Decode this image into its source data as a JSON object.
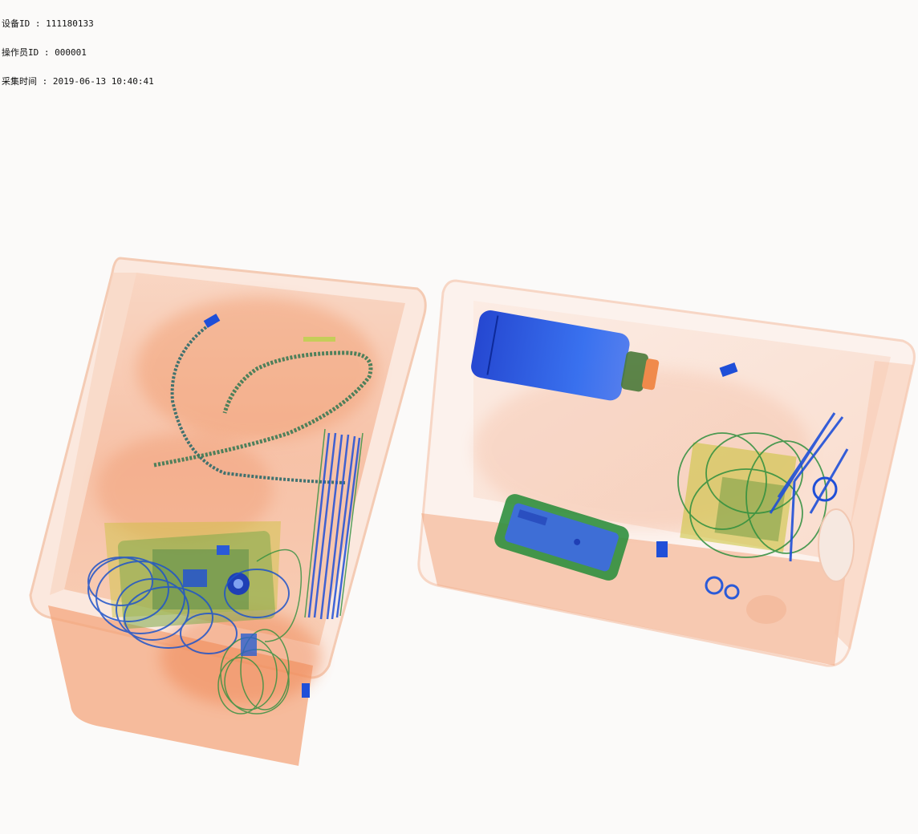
{
  "header": {
    "device_id": "设备ID : 111180133",
    "operator_id": "操作员ID : 000001",
    "capture_time": "采集时间 : 2019-06-13 10:40:41"
  },
  "scan": {
    "colors": {
      "organic": "#f08a4b",
      "tray_edge": "#f6c9b0",
      "inorganic": "#2f8f3e",
      "metal": "#1f4fd8",
      "mixed": "#b7c43a",
      "background": "#fbfaf9"
    }
  }
}
